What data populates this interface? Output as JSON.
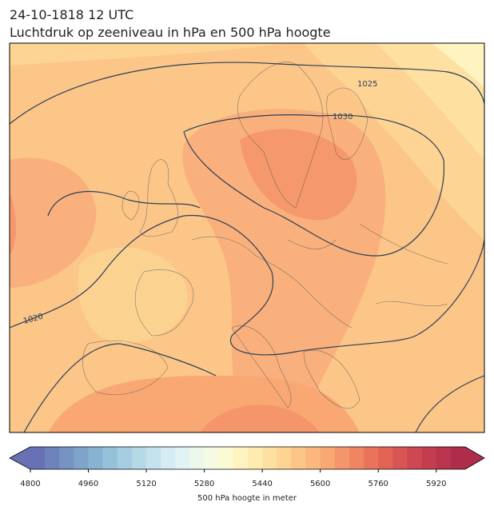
{
  "header": {
    "title": "24-10-1818 12 UTC",
    "subtitle": "Luchtdruk op zeeniveau in hPa en 500 hPa hoogte"
  },
  "isobars": [
    1025,
    1030,
    1020
  ],
  "colorbar": {
    "label": "500 hPa hoogte in meter",
    "clim": [
      4800,
      6000
    ],
    "ticks": [
      4800,
      4960,
      5120,
      5280,
      5440,
      5600,
      5760,
      5920
    ],
    "colors": [
      "#6771b4",
      "#6e82bb",
      "#7594c3",
      "#7ea4ca",
      "#88b3d2",
      "#96c1da",
      "#a6cde1",
      "#b6d9e7",
      "#c5e3ee",
      "#d4ecf3",
      "#e2f3f3",
      "#edf7ec",
      "#f6fae2",
      "#fcfad2",
      "#fff4c0",
      "#ffeab0",
      "#fee0a1",
      "#fdd494",
      "#fcc688",
      "#fbb77d",
      "#f9a773",
      "#f5966a",
      "#f08562",
      "#ea745b",
      "#e26356",
      "#d95553",
      "#ce4851",
      "#c33d4f",
      "#b8354d",
      "#ad2d4b"
    ]
  }
}
